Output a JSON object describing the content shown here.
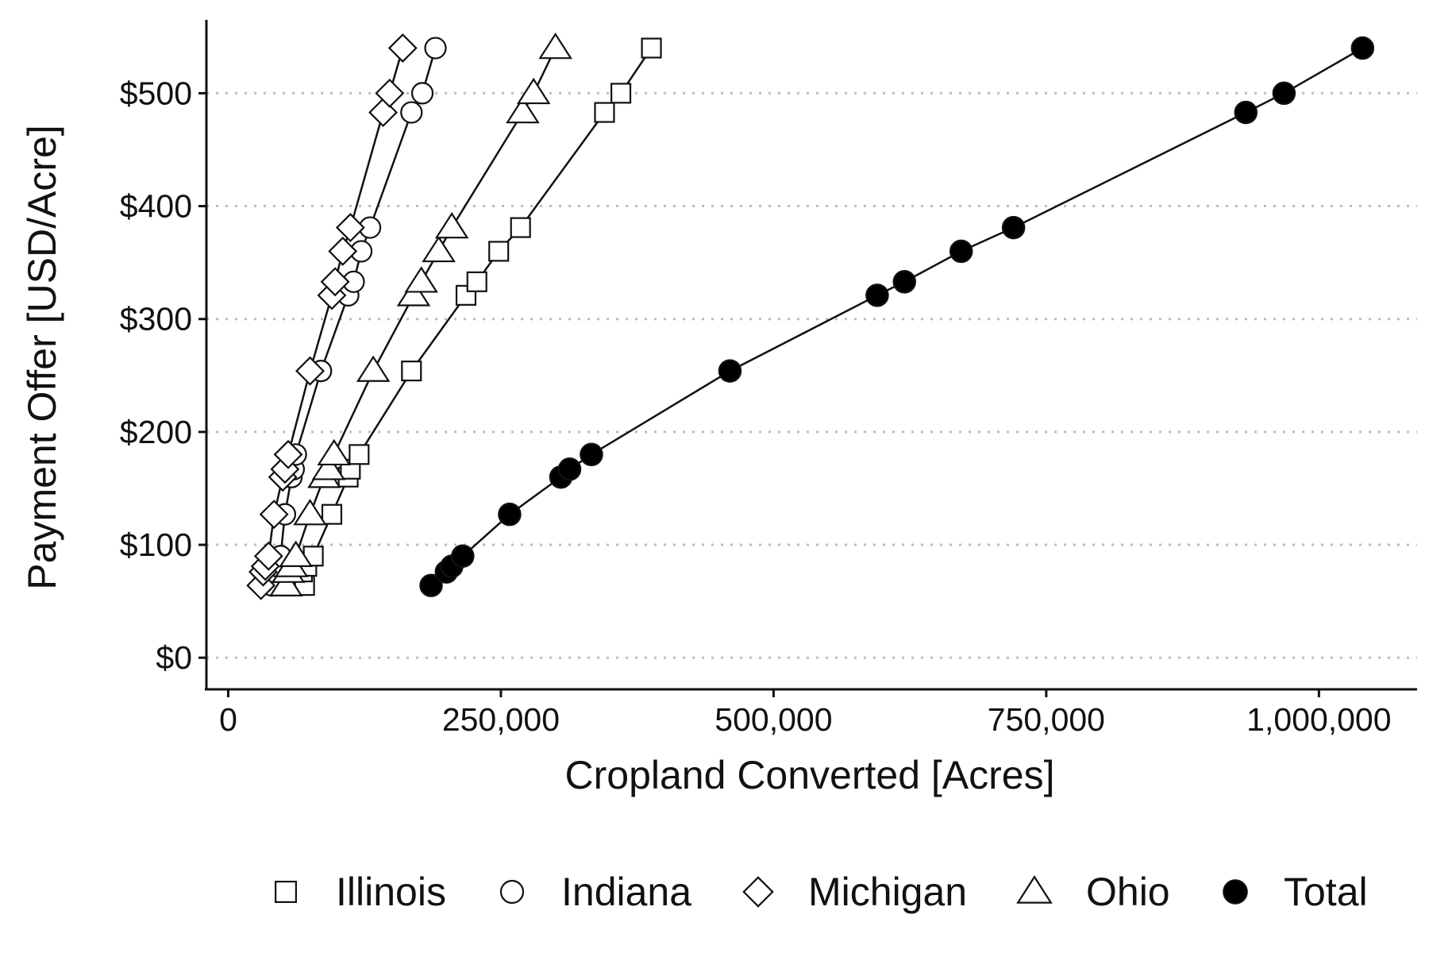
{
  "chart_data": {
    "type": "line",
    "title": "",
    "xlabel": "Cropland Converted [Acres]",
    "ylabel": "Payment Offer [USD/Acre]",
    "xlim": [
      -20000,
      1090000
    ],
    "ylim": [
      -28,
      565
    ],
    "x_ticks": [
      0,
      250000,
      500000,
      750000,
      1000000
    ],
    "x_tick_labels": [
      "0",
      "250,000",
      "500,000",
      "750,000",
      "1,000,000"
    ],
    "y_ticks": [
      0,
      100,
      200,
      300,
      400,
      500
    ],
    "y_tick_labels": [
      "$0",
      "$100",
      "$200",
      "$300",
      "$400",
      "$500"
    ],
    "grid": "horizontal dotted",
    "legend_position": "bottom",
    "series": [
      {
        "name": "Illinois",
        "marker": "square",
        "filled": false,
        "points": [
          [
            70000,
            64
          ],
          [
            68000,
            76
          ],
          [
            72000,
            81
          ],
          [
            78000,
            90
          ],
          [
            95000,
            127
          ],
          [
            110000,
            160
          ],
          [
            112000,
            167
          ],
          [
            120000,
            180
          ],
          [
            168000,
            254
          ],
          [
            218000,
            321
          ],
          [
            228000,
            333
          ],
          [
            248000,
            360
          ],
          [
            268000,
            381
          ],
          [
            345000,
            483
          ],
          [
            360000,
            500
          ],
          [
            388000,
            540
          ]
        ]
      },
      {
        "name": "Indiana",
        "marker": "circle",
        "filled": false,
        "points": [
          [
            40000,
            64
          ],
          [
            42000,
            76
          ],
          [
            45000,
            81
          ],
          [
            48000,
            90
          ],
          [
            52000,
            127
          ],
          [
            58000,
            160
          ],
          [
            60000,
            167
          ],
          [
            62000,
            180
          ],
          [
            85000,
            254
          ],
          [
            110000,
            321
          ],
          [
            115000,
            333
          ],
          [
            122000,
            360
          ],
          [
            130000,
            381
          ],
          [
            168000,
            483
          ],
          [
            178000,
            500
          ],
          [
            190000,
            540
          ]
        ]
      },
      {
        "name": "Michigan",
        "marker": "diamond",
        "filled": false,
        "points": [
          [
            30000,
            64
          ],
          [
            32000,
            76
          ],
          [
            34000,
            81
          ],
          [
            37000,
            90
          ],
          [
            42000,
            127
          ],
          [
            50000,
            160
          ],
          [
            52000,
            167
          ],
          [
            55000,
            180
          ],
          [
            75000,
            254
          ],
          [
            95000,
            321
          ],
          [
            98000,
            333
          ],
          [
            105000,
            360
          ],
          [
            112000,
            381
          ],
          [
            142000,
            483
          ],
          [
            148000,
            500
          ],
          [
            160000,
            540
          ]
        ]
      },
      {
        "name": "Ohio",
        "marker": "triangle",
        "filled": false,
        "points": [
          [
            53000,
            64
          ],
          [
            55000,
            76
          ],
          [
            58000,
            81
          ],
          [
            62000,
            90
          ],
          [
            75000,
            127
          ],
          [
            88000,
            160
          ],
          [
            92000,
            167
          ],
          [
            97000,
            180
          ],
          [
            133000,
            254
          ],
          [
            170000,
            321
          ],
          [
            177000,
            333
          ],
          [
            193000,
            360
          ],
          [
            205000,
            381
          ],
          [
            270000,
            483
          ],
          [
            280000,
            500
          ],
          [
            300000,
            540
          ]
        ]
      },
      {
        "name": "Total",
        "marker": "circle",
        "filled": true,
        "points": [
          [
            186000,
            64
          ],
          [
            200000,
            76
          ],
          [
            205000,
            81
          ],
          [
            215000,
            90
          ],
          [
            258000,
            127
          ],
          [
            305000,
            160
          ],
          [
            313000,
            167
          ],
          [
            333000,
            180
          ],
          [
            460000,
            254
          ],
          [
            595000,
            321
          ],
          [
            620000,
            333
          ],
          [
            672000,
            360
          ],
          [
            720000,
            381
          ],
          [
            933000,
            483
          ],
          [
            968000,
            500
          ],
          [
            1040000,
            540
          ]
        ]
      }
    ]
  },
  "colors": {
    "ink": "#111111",
    "marker_fill_open": "#ffffff",
    "marker_fill_solid": "#000000",
    "grid": "#bdbdbd",
    "background": "#ffffff"
  }
}
